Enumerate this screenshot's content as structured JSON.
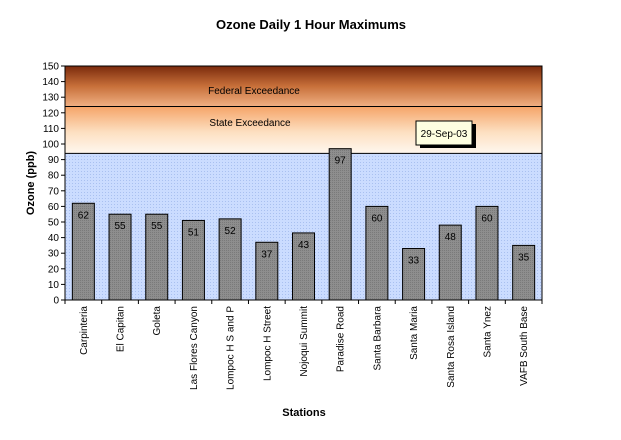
{
  "chart_data": {
    "type": "bar",
    "title": "Ozone Daily 1 Hour Maximums",
    "xlabel": "Stations",
    "ylabel": "Ozone (ppb)",
    "ylim": [
      0,
      150
    ],
    "yticks": [
      0,
      10,
      20,
      30,
      40,
      50,
      60,
      70,
      80,
      90,
      100,
      110,
      120,
      130,
      140,
      150
    ],
    "categories": [
      "Carpinteria",
      "El Capitan",
      "Goleta",
      "Las Flores Canyon",
      "Lompoc H S and P",
      "Lompoc H Street",
      "Nojoqui Summit",
      "Paradise Road",
      "Santa Barbara",
      "Santa Maria",
      "Santa Rosa Island",
      "Santa Ynez",
      "VAFB South Base"
    ],
    "values": [
      62,
      55,
      55,
      51,
      52,
      37,
      43,
      97,
      60,
      33,
      48,
      60,
      35
    ],
    "data_labels": [
      "62",
      "55",
      "55",
      "51",
      "52",
      "37",
      "43",
      "97",
      "60",
      "33",
      "48",
      "60",
      "35"
    ],
    "bar_color": "#8c8c8c",
    "grid": false,
    "zones": [
      {
        "label": "Federal Exceedance",
        "from": 124,
        "to": 150,
        "color": "#a0461e"
      },
      {
        "label": "State Exceedance",
        "from": 94,
        "to": 124,
        "color": "#f7b27a"
      }
    ],
    "date_box": "29-Sep-03",
    "background_color": "#c6d8ff"
  }
}
